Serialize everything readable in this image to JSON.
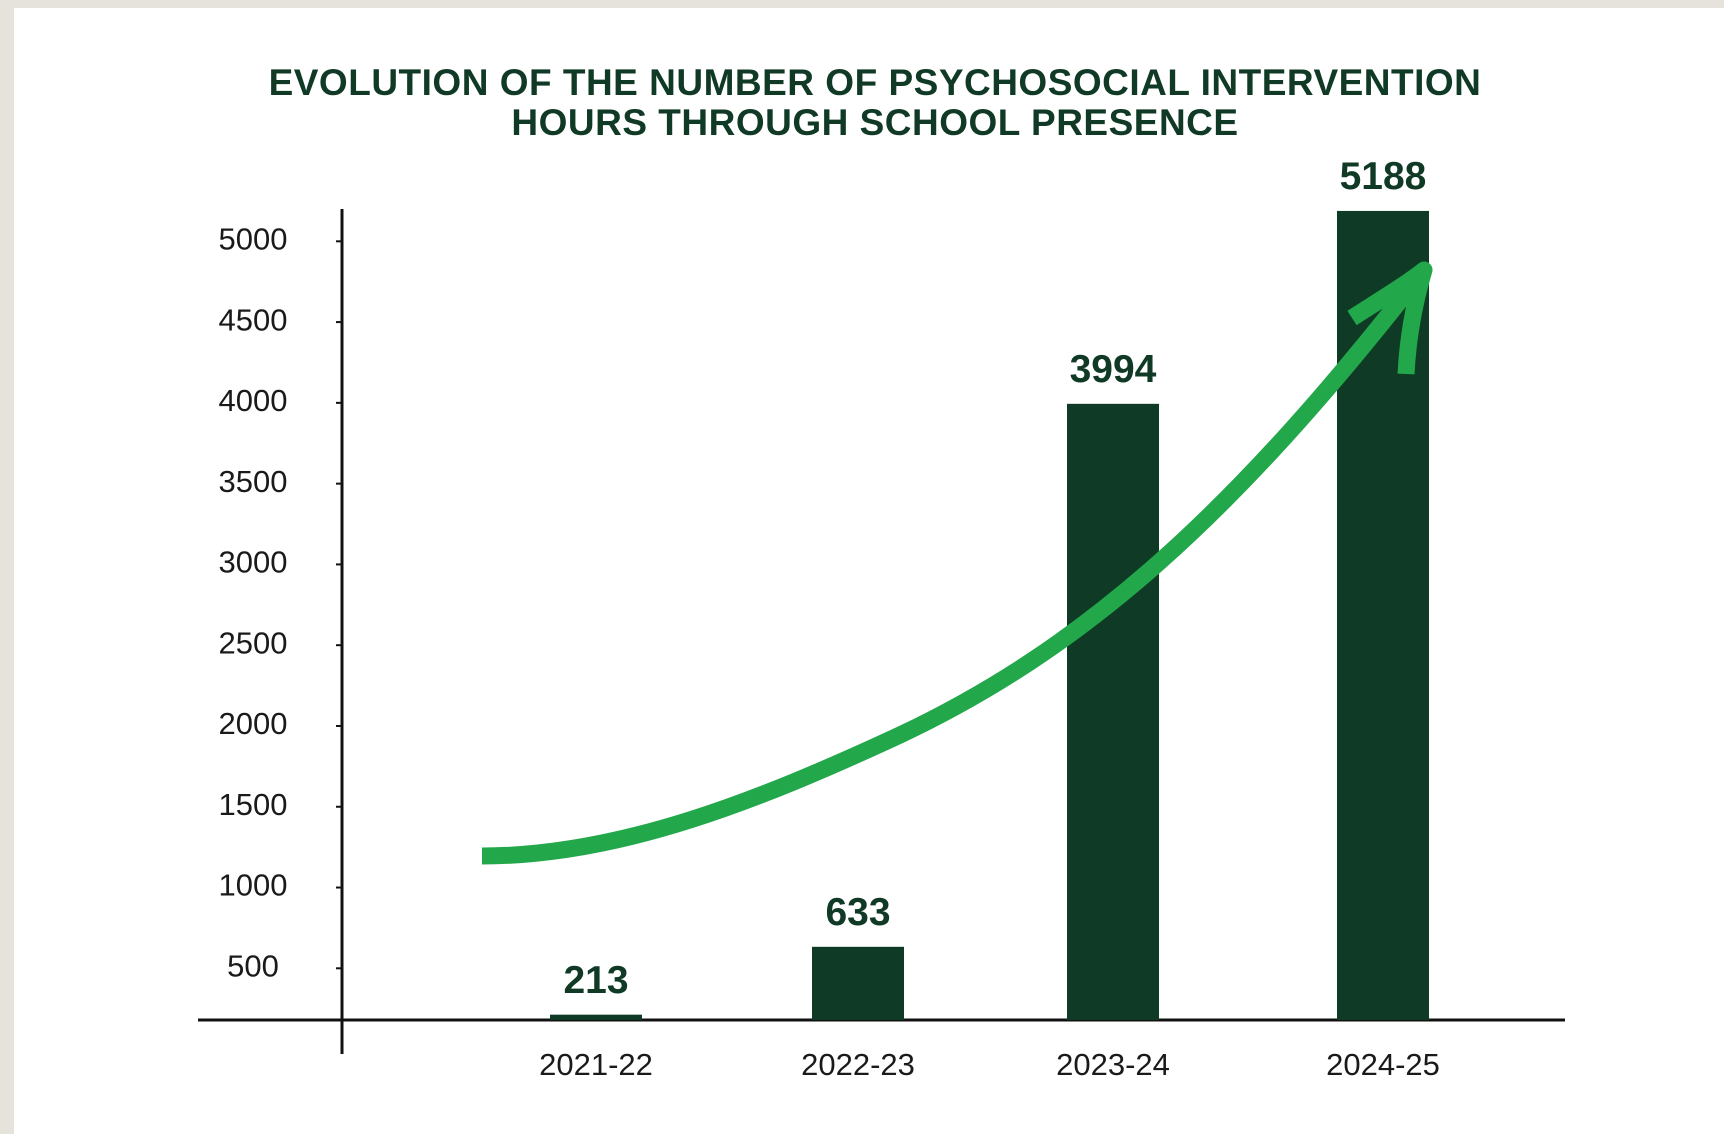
{
  "chart_data": {
    "type": "bar",
    "title_lines": [
      "EVOLUTION OF THE NUMBER OF PSYCHOSOCIAL INTERVENTION",
      "HOURS THROUGH SCHOOL PRESENCE"
    ],
    "categories": [
      "2021-22",
      "2022-23",
      "2023-24",
      "2024-25"
    ],
    "values": [
      213,
      633,
      3994,
      5188
    ],
    "color": "#0f3a25",
    "ylim": [
      180,
      5200
    ],
    "yticks": [
      500,
      1000,
      1500,
      2000,
      2500,
      3000,
      3500,
      4000,
      4500,
      5000
    ],
    "grid": false
  }
}
